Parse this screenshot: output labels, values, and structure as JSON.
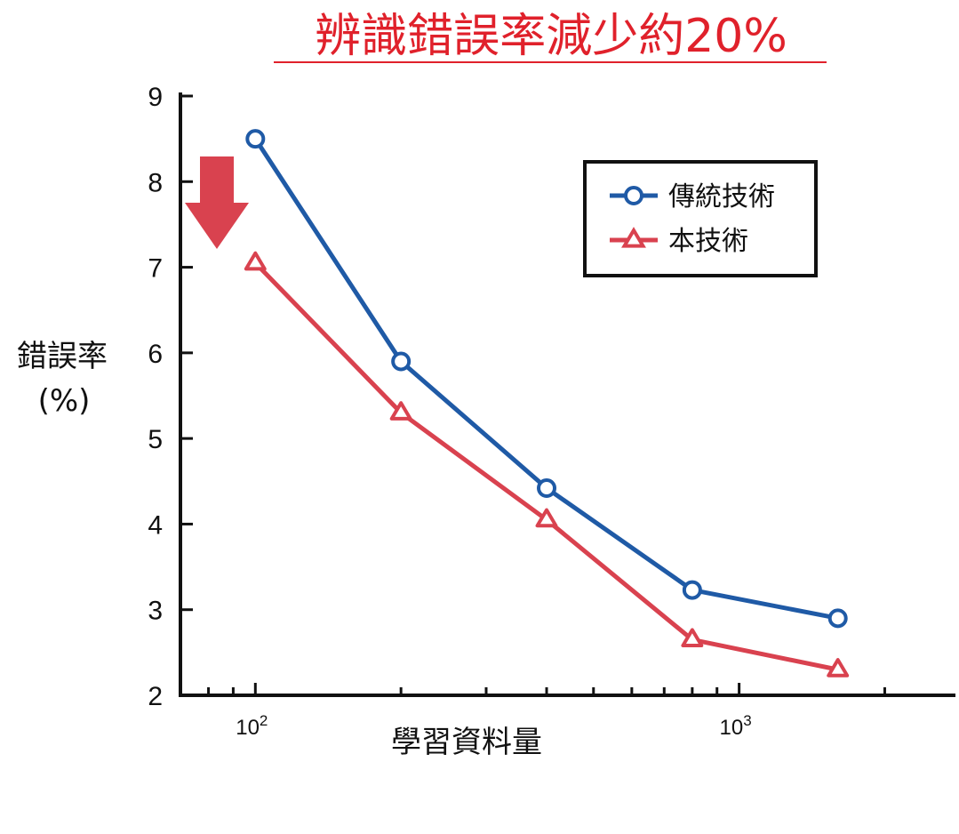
{
  "chart_data": {
    "type": "line",
    "title": "辨識錯誤率減少約20%",
    "xlabel": "學習資料量",
    "ylabel_line1": "錯誤率",
    "ylabel_line2": "(%)",
    "x_scale": "log",
    "x": [
      100,
      200,
      400,
      800,
      1600
    ],
    "xlim": [
      70,
      2800
    ],
    "ylim": [
      2,
      9
    ],
    "yticks": [
      "2",
      "3",
      "4",
      "5",
      "6",
      "7",
      "8",
      "9"
    ],
    "xtick_labels": [
      {
        "base": "10",
        "exp": "2",
        "value": 100
      },
      {
        "base": "10",
        "exp": "3",
        "value": 1000
      }
    ],
    "series": [
      {
        "name": "傳統技術",
        "marker": "circle",
        "color": "#1f5aa6",
        "values": [
          8.5,
          5.9,
          4.42,
          3.23,
          2.9
        ]
      },
      {
        "name": "本技術",
        "marker": "triangle",
        "color": "#d9424f",
        "values": [
          7.05,
          5.3,
          4.05,
          2.65,
          2.3
        ]
      }
    ],
    "legend_position": "top-right",
    "grid": false,
    "annotation_arrow_color": "#d9424f",
    "title_color": "#e0212b"
  }
}
